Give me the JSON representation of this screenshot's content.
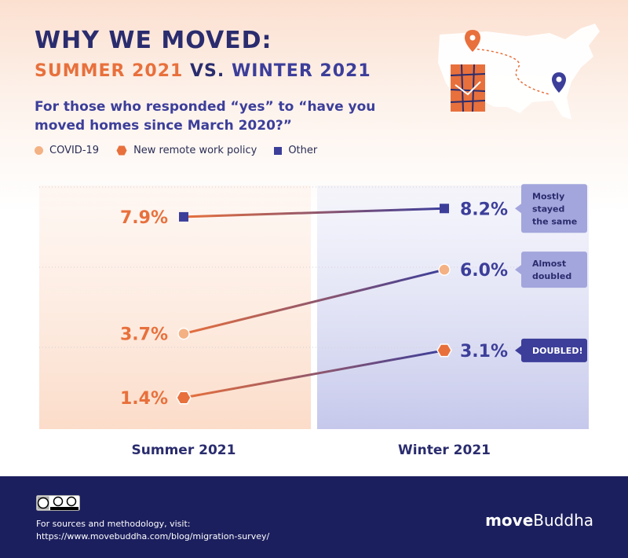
{
  "header": {
    "title": "WHY WE MOVED:",
    "subtitle_part1": "SUMMER 2021",
    "subtitle_vs": "VS.",
    "subtitle_part2": "WINTER 2021",
    "question": "For those who responded “yes” to “have you moved homes since March 2020?”"
  },
  "legend": {
    "covid": "COVID-19",
    "remote": "New remote work policy",
    "other": "Other"
  },
  "chart_data": {
    "type": "line",
    "x": [
      "Summer 2021",
      "Winter 2021"
    ],
    "series": [
      {
        "name": "Other",
        "values": [
          7.9,
          8.2
        ],
        "labels": [
          "7.9%",
          "8.2%"
        ],
        "note": "Mostly stayed the same",
        "marker": "square",
        "color": "#3c3e9a"
      },
      {
        "name": "COVID-19",
        "values": [
          3.7,
          6.0
        ],
        "labels": [
          "3.7%",
          "6.0%"
        ],
        "note": "Almost doubled",
        "marker": "circle",
        "color": "#f4b183"
      },
      {
        "name": "New remote work policy",
        "values": [
          1.4,
          3.1
        ],
        "labels": [
          "1.4%",
          "3.1%"
        ],
        "note": "DOUBLED!",
        "marker": "hexagon",
        "color": "#e8703c"
      }
    ],
    "colors": {
      "summer": "#e8703c",
      "winter": "#3c3e9a"
    },
    "grid": true
  },
  "footer": {
    "license_icon": "cc-by-sa-icon",
    "sources_text": "For sources and methodology, visit:",
    "sources_url": "https://www.movebuddha.com/blog/migration-survey/",
    "brand_bold": "move",
    "brand_regular": "Buddha"
  }
}
